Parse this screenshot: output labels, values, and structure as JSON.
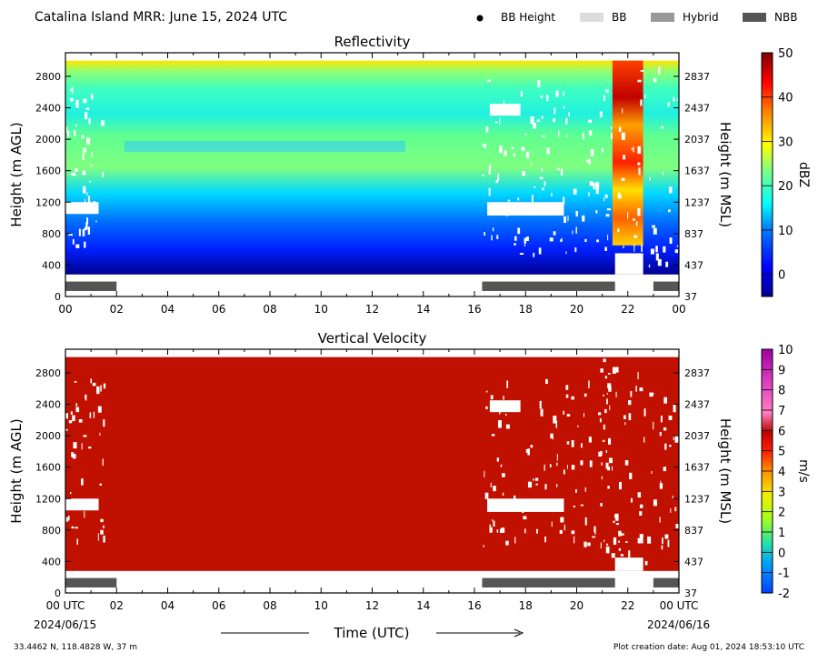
{
  "header": {
    "title": "Catalina Island MRR:  June 15, 2024 UTC",
    "legend": [
      {
        "label": "BB Height",
        "color": "#000000",
        "marker": "dot"
      },
      {
        "label": "BB",
        "color": "#dcdcdc",
        "marker": "bar"
      },
      {
        "label": "Hybrid",
        "color": "#999999",
        "marker": "bar"
      },
      {
        "label": "NBB",
        "color": "#555555",
        "marker": "bar"
      }
    ]
  },
  "footer": {
    "location": "33.4462 N, 118.4828 W, 37 m",
    "creation": "Plot creation date: Aug 01, 2024 18:53:10 UTC",
    "xlabel": "Time (UTC)",
    "start_date": "2024/06/15",
    "end_date": "2024/06/16"
  },
  "chart_data": [
    {
      "type": "heatmap",
      "title": "Reflectivity",
      "ylabel": "Height (m AGL)",
      "y2label": "Height (m MSL)",
      "xlim": [
        0,
        24
      ],
      "ylim": [
        0,
        3100
      ],
      "x_ticks": [
        "00",
        "02",
        "04",
        "06",
        "08",
        "10",
        "12",
        "14",
        "16",
        "18",
        "20",
        "22",
        "00"
      ],
      "y_ticks": [
        0,
        400,
        800,
        1200,
        1600,
        2000,
        2400,
        2800
      ],
      "y2_ticks": [
        37,
        437,
        837,
        1237,
        1637,
        2037,
        2437,
        2837
      ],
      "colorbar": {
        "label": "dBZ",
        "min": -5,
        "max": 50,
        "ticks": [
          0,
          10,
          20,
          30,
          40,
          50
        ]
      },
      "nbb_periods": [
        [
          0,
          2
        ],
        [
          16.3,
          21.5
        ],
        [
          23,
          24
        ]
      ]
    },
    {
      "type": "heatmap",
      "title": "Vertical Velocity",
      "ylabel": "Height (m AGL)",
      "y2label": "Height (m MSL)",
      "xlim": [
        0,
        24
      ],
      "ylim": [
        0,
        3100
      ],
      "x_ticks": [
        "00 UTC",
        "02",
        "04",
        "06",
        "08",
        "10",
        "12",
        "14",
        "16",
        "18",
        "20",
        "22",
        "00 UTC"
      ],
      "y_ticks": [
        0,
        400,
        800,
        1200,
        1600,
        2000,
        2400,
        2800
      ],
      "y2_ticks": [
        37,
        437,
        837,
        1237,
        1637,
        2037,
        2437,
        2837
      ],
      "colorbar": {
        "label": "m/s",
        "min": -2,
        "max": 10,
        "ticks": [
          -2,
          -1,
          0,
          1,
          2,
          3,
          4,
          5,
          6,
          7,
          8,
          9,
          10
        ]
      },
      "nbb_periods": [
        [
          0,
          2
        ],
        [
          16.3,
          21.5
        ],
        [
          23,
          24
        ]
      ]
    }
  ]
}
